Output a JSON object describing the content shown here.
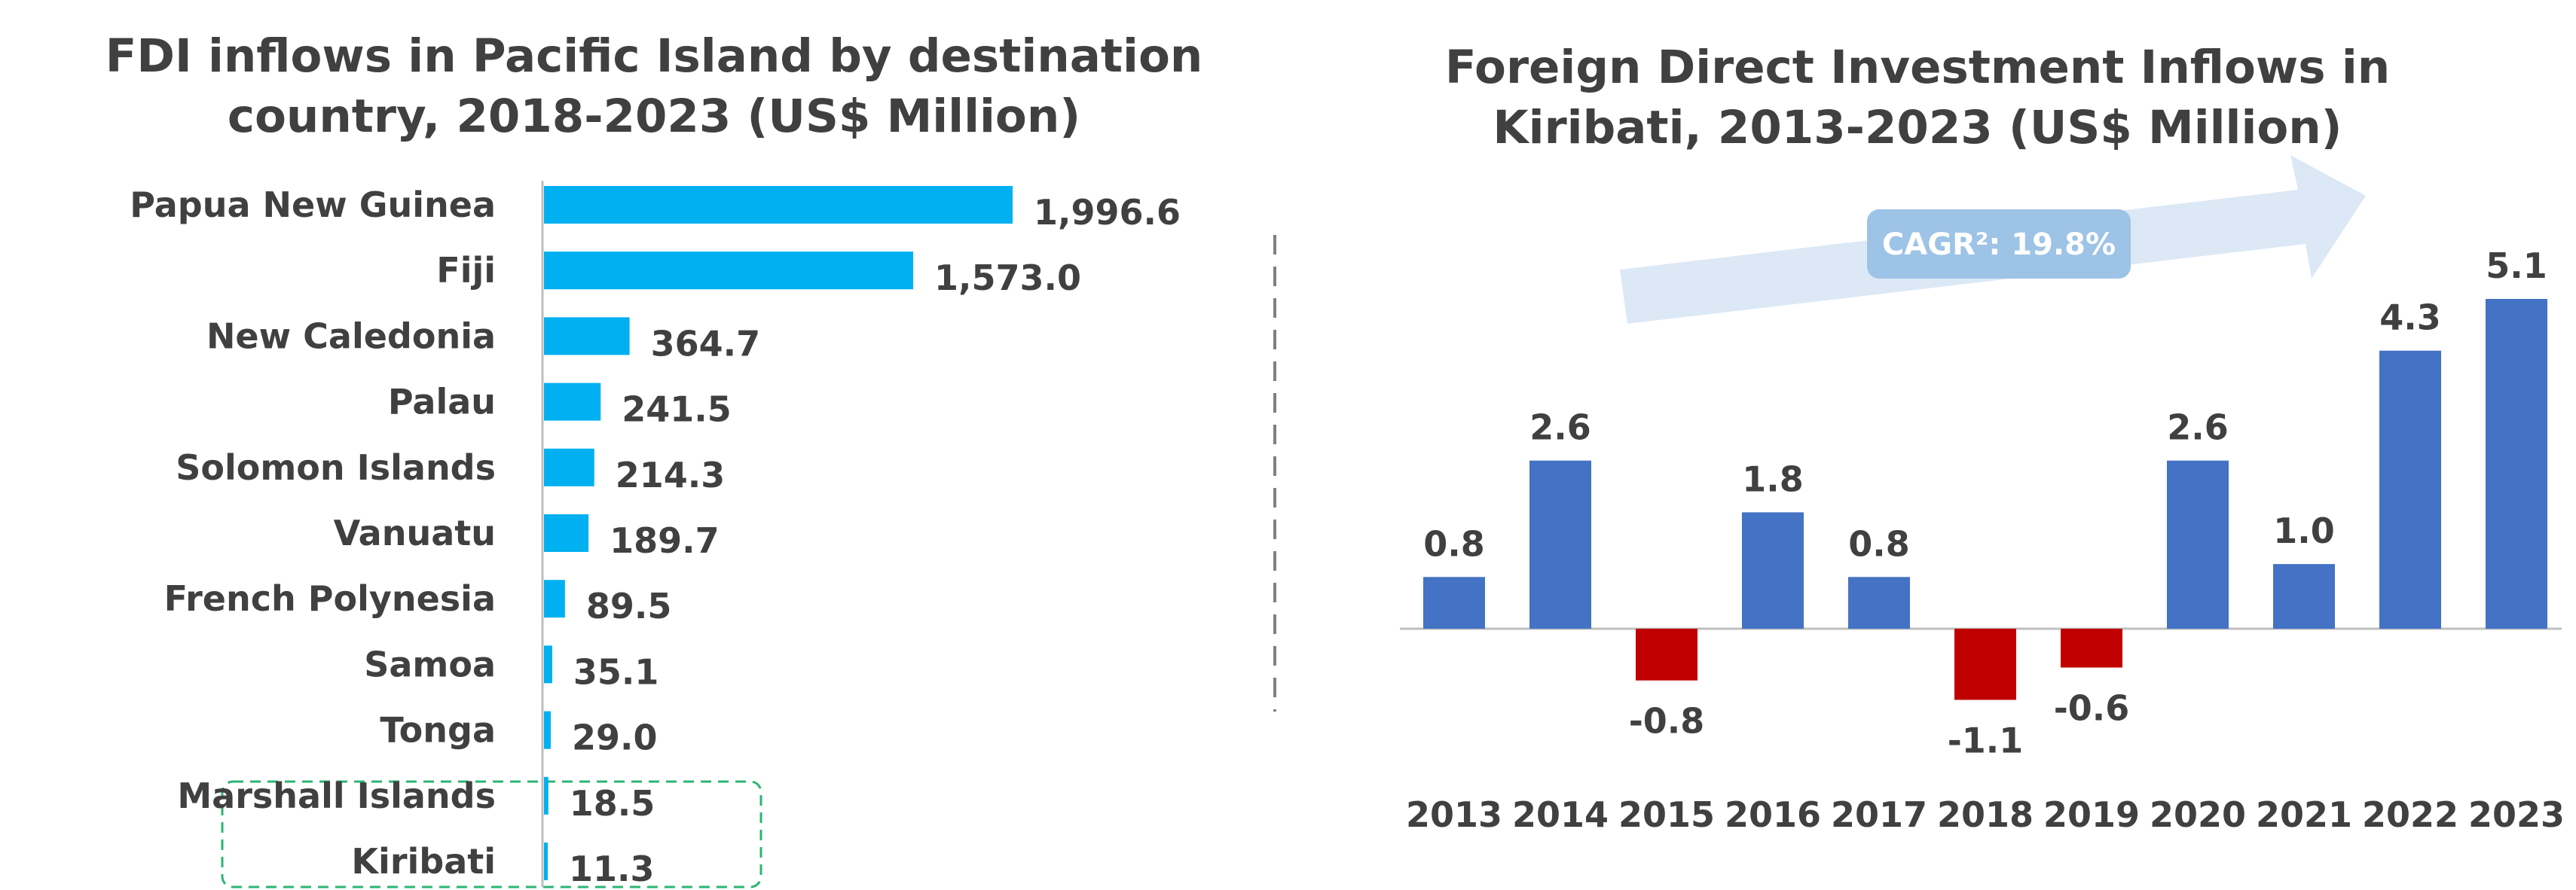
{
  "chart_data": [
    {
      "type": "bar",
      "orientation": "horizontal",
      "title": "FDI inflows in Pacific Island by destination country, 2018-2023 (US$ Million)",
      "title_lines": [
        "FDI inflows in Pacific Island by destination",
        "country, 2018-2023 (US$ Million)"
      ],
      "categories": [
        "Papua New Guinea",
        "Fiji",
        "New Caledonia",
        "Palau",
        "Solomon Islands",
        "Vanuatu",
        "French Polynesia",
        "Samoa",
        "Tonga",
        "Marshall Islands",
        "Kiribati"
      ],
      "values": [
        1996.6,
        1573.0,
        364.7,
        241.5,
        214.3,
        189.7,
        89.5,
        35.1,
        29.0,
        18.5,
        11.3
      ],
      "value_labels": [
        "1,996.6",
        "1,573.0",
        "364.7",
        "241.5",
        "214.3",
        "189.7",
        "89.5",
        "35.1",
        "29.0",
        "18.5",
        "11.3"
      ],
      "highlighted_category": "Kiribati",
      "bar_color": "#00B0F0",
      "highlight_color": "#2BB673"
    },
    {
      "type": "bar",
      "title": "Foreign Direct Investment Inflows in Kiribati, 2013-2023 (US$ Million)",
      "title_lines": [
        "Foreign Direct Investment Inflows in",
        "Kiribati, 2013-2023 (US$ Million)"
      ],
      "categories": [
        "2013",
        "2014",
        "2015",
        "2016",
        "2017",
        "2018",
        "2019",
        "2020",
        "2021",
        "2022",
        "2023"
      ],
      "values": [
        0.8,
        2.6,
        -0.8,
        1.8,
        0.8,
        -1.1,
        -0.6,
        2.6,
        1.0,
        4.3,
        5.1
      ],
      "value_labels": [
        "0.8",
        "2.6",
        "-0.8",
        "1.8",
        "0.8",
        "-1.1",
        "-0.6",
        "2.6",
        "1.0",
        "4.3",
        "5.1"
      ],
      "positive_color": "#4472C4",
      "negative_color": "#C00000",
      "annotation": "CAGR²: 19.8%",
      "arrow_color": "#DCE8F5",
      "badge_color": "#9DC3E6"
    }
  ]
}
